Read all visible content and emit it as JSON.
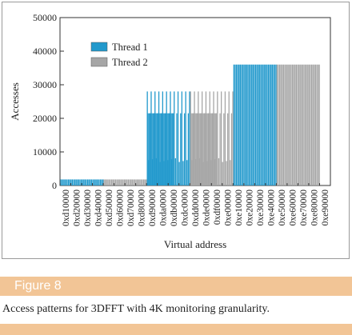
{
  "figure": {
    "label": "Figure 8",
    "caption": "Access patterns for 3DFFT with 4K monitoring granularity."
  },
  "colors": {
    "thread1": "#2299cc",
    "thread2": "#a6a6a6",
    "accent": "#f2c596"
  },
  "chart_data": {
    "type": "bar",
    "xlabel": "Virtual address",
    "ylabel": "Accesses",
    "ylim": [
      0,
      50000
    ],
    "yticks": [
      "0",
      "10000",
      "20000",
      "30000",
      "40000",
      "50000"
    ],
    "grid": false,
    "legend_position": "top-left",
    "categories": [
      "0xd10000",
      "0xd20000",
      "0xd30000",
      "0xd40000",
      "0xd50000",
      "0xd60000",
      "0xd70000",
      "0xd80000",
      "0xd90000",
      "0xda0000",
      "0xdb0000",
      "0xdc0000",
      "0xdd0000",
      "0xde0000",
      "0xdf0000",
      "0xe00000",
      "0xe10000",
      "0xe20000",
      "0xe30000",
      "0xe40000",
      "0xe50000",
      "0xe60000",
      "0xe70000",
      "0xe80000",
      "0xe90000"
    ],
    "series": [
      {
        "name": "Thread 1",
        "color": "#2299cc",
        "segments": [
          {
            "from": "0xd10000",
            "to": "0xd50000",
            "value": 1800
          },
          {
            "from": "0xd90000",
            "to": "0xdd0000",
            "value": 28000,
            "dense_value": 21500
          },
          {
            "from": "0xe10000",
            "to": "0xe50000",
            "value": 36000
          }
        ]
      },
      {
        "name": "Thread 2",
        "color": "#a6a6a6",
        "segments": [
          {
            "from": "0xd50000",
            "to": "0xd90000",
            "value": 1800
          },
          {
            "from": "0xdd0000",
            "to": "0xe10000",
            "value": 28000,
            "dense_value": 21500
          },
          {
            "from": "0xe50000",
            "to": "0xe90000",
            "value": 36000
          }
        ]
      }
    ]
  }
}
